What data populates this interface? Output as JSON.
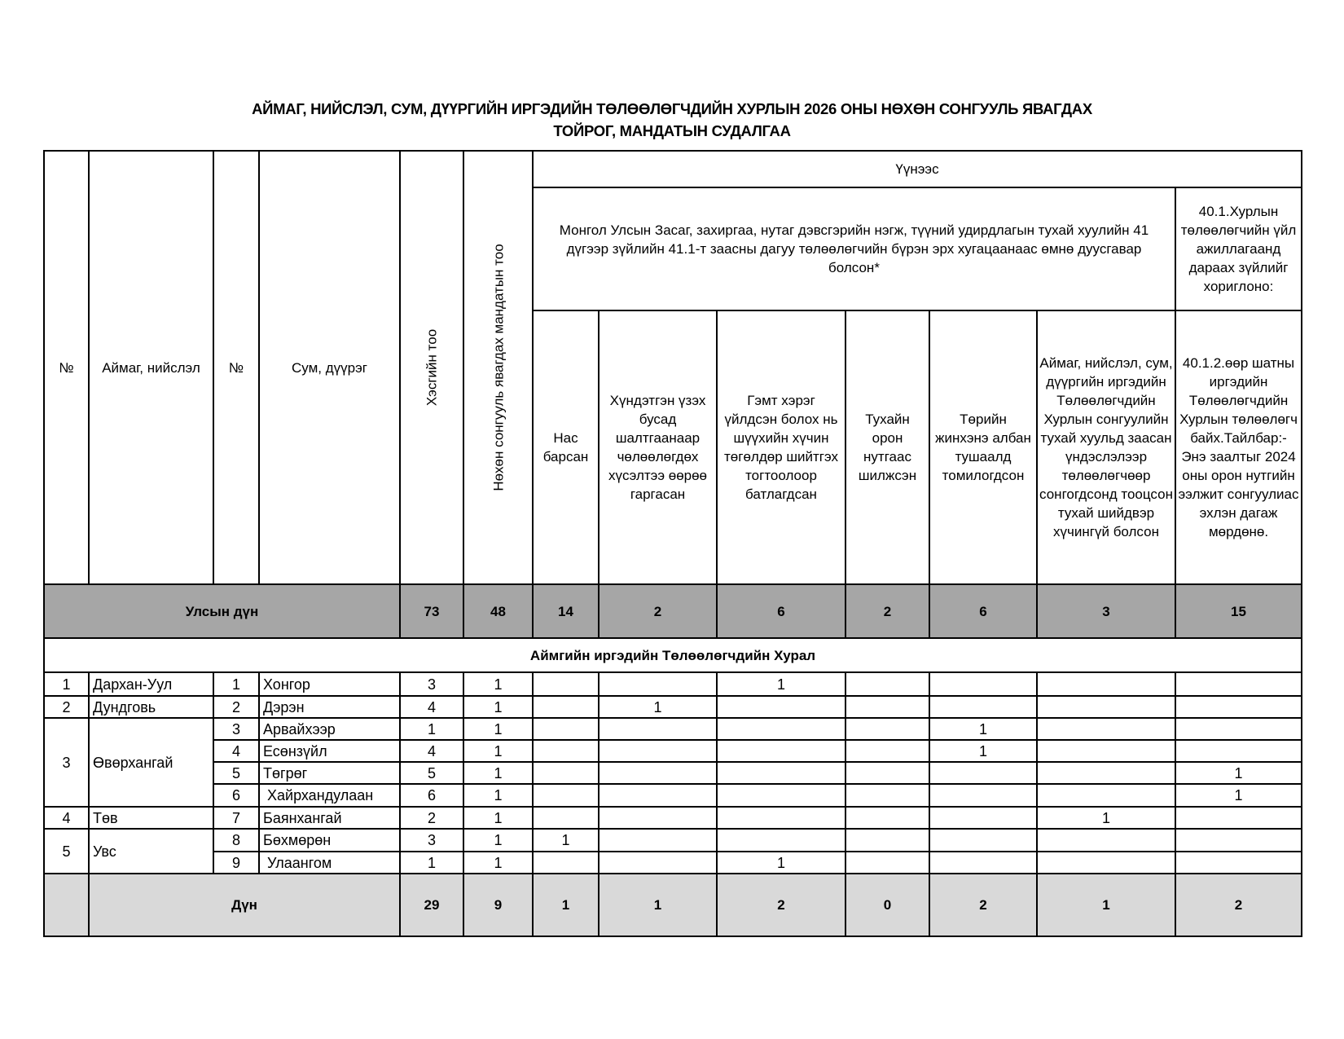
{
  "title": {
    "line1": "АЙМАГ, НИЙСЛЭЛ, СУМ, ДҮҮРГИЙН ИРГЭДИЙН ТӨЛӨӨЛӨГЧДИЙН ХУРЛЫН 2026 ОНЫ НӨХӨН СОНГУУЛЬ ЯВАГДАХ",
    "line2": "ТОЙРОГ, МАНДАТЫН СУДАЛГАА"
  },
  "headers": {
    "no": "№",
    "aimag": "Аймаг, нийслэл",
    "no2": "№",
    "sum": "Сум, дүүрэг",
    "sections": "Хэсгийн тоо",
    "mandates": "Нөхөн сонгууль явагдах мандатын тоо",
    "of_which": "Үүнээс",
    "group_law41": "Монгол Улсын Засаг, захиргаа, нутаг дэвсгэрийн нэгж, түүний удирдлагын тухай хуулийн 41 дүгээр зүйлийн 41.1-т заасны дагуу төлөөлөгчийн бүрэн эрх хугацаанаас өмнө дуусгавар болсон*",
    "group_40_1": "40.1.Хурлын төлөөлөгчийн үйл ажиллагаанд дараах зүйлийг хориглоно:",
    "reasons": [
      "Нас барсан",
      "Хүндэтгэн үзэх бусад шалтгаанаар чөлөөлөгдөх хүсэлтээ өөрөө гаргасан",
      "Гэмт хэрэг үйлдсэн болох нь шүүхийн хүчин төгөлдөр шийтгэх тогтоолоор батлагдсан",
      "Тухайн орон нутгаас шилжсэн",
      "Төрийн жинхэнэ албан тушаалд томилогдсон",
      "Аймаг, нийслэл, сум, дүүргийн иргэдийн Төлөөлөгчдийн Хурлын сонгуулийн тухай хуульд заасан үндэслэлээр төлөөлөгчөөр сонгогдсонд тооцсон тухай шийдвэр хүчингүй болсон",
      "40.1.2.өөр шатны иргэдийн Төлөөлөгчдийн Хурлын төлөөлөгч байх.Тайлбар:- Энэ заалтыг 2024 оны орон нутгийн ээлжит сонгуулиас эхлэн дагаж мөрдөнө."
    ]
  },
  "national_total": {
    "label": "Улсын дүн",
    "values": [
      "73",
      "48",
      "14",
      "2",
      "6",
      "2",
      "6",
      "3",
      "15"
    ]
  },
  "section_title": "Аймгийн иргэдийн Төлөөлөгчдийн Хурал",
  "aimags": [
    {
      "no": "1",
      "name": "Дархан-Уул",
      "sums": [
        {
          "no": "1",
          "name": "Хонгор",
          "values": [
            "3",
            "1",
            "",
            "",
            "1",
            "",
            "",
            "",
            ""
          ]
        }
      ]
    },
    {
      "no": "2",
      "name": "Дундговь",
      "sums": [
        {
          "no": "2",
          "name": "Дэрэн",
          "values": [
            "4",
            "1",
            "",
            "1",
            "",
            "",
            "",
            "",
            ""
          ]
        }
      ]
    },
    {
      "no": "3",
      "name": "Өвөрхангай",
      "sums": [
        {
          "no": "3",
          "name": "Арвайхээр",
          "values": [
            "1",
            "1",
            "",
            "",
            "",
            "",
            "1",
            "",
            ""
          ]
        },
        {
          "no": "4",
          "name": "Есөнзүйл",
          "values": [
            "4",
            "1",
            "",
            "",
            "",
            "",
            "1",
            "",
            ""
          ]
        },
        {
          "no": "5",
          "name": "Төгрөг",
          "values": [
            "5",
            "1",
            "",
            "",
            "",
            "",
            "",
            "",
            "1"
          ]
        },
        {
          "no": "6",
          "name": " Хайрхандулаан",
          "values": [
            "6",
            "1",
            "",
            "",
            "",
            "",
            "",
            "",
            "1"
          ]
        }
      ]
    },
    {
      "no": "4",
      "name": "Төв",
      "sums": [
        {
          "no": "7",
          "name": "Баянхангай",
          "values": [
            "2",
            "1",
            "",
            "",
            "",
            "",
            "",
            "1",
            ""
          ]
        }
      ]
    },
    {
      "no": "5",
      "name": "Увс",
      "sums": [
        {
          "no": "8",
          "name": "Бөхмөрөн",
          "values": [
            "3",
            "1",
            "1",
            "",
            "",
            "",
            "",
            "",
            ""
          ]
        },
        {
          "no": "9",
          "name": " Улаангом",
          "values": [
            "1",
            "1",
            "",
            "",
            "1",
            "",
            "",
            "",
            ""
          ]
        }
      ]
    }
  ],
  "subtotal": {
    "label": "Дүн",
    "values": [
      "29",
      "9",
      "1",
      "1",
      "2",
      "0",
      "2",
      "1",
      "2"
    ]
  },
  "colors": {
    "national_total_bg": "#a6a6a6",
    "subtotal_bg": "#d9d9d9"
  }
}
